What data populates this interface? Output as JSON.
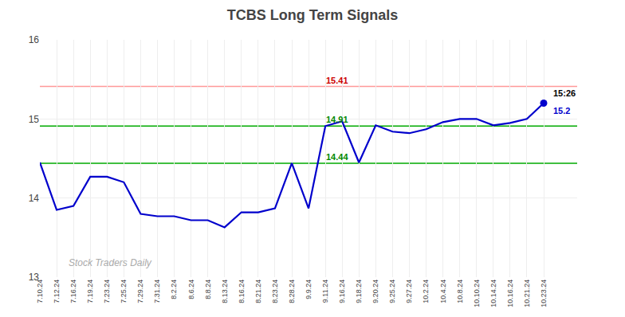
{
  "chart_data": {
    "type": "line",
    "title": "TCBS Long Term Signals",
    "categories": [
      "7.10.24",
      "7.12.24",
      "7.16.24",
      "7.19.24",
      "7.23.24",
      "7.25.24",
      "7.29.24",
      "7.31.24",
      "8.2.24",
      "8.6.24",
      "8.8.24",
      "8.13.24",
      "8.16.24",
      "8.21.24",
      "8.23.24",
      "8.28.24",
      "9.9.24",
      "9.11.24",
      "9.16.24",
      "9.18.24",
      "9.20.24",
      "9.25.24",
      "9.27.24",
      "10.2.24",
      "10.4.24",
      "10.8.24",
      "10.10.24",
      "10.14.24",
      "10.16.24",
      "10.21.24",
      "10.23.24"
    ],
    "values": [
      14.45,
      13.85,
      13.9,
      14.27,
      14.27,
      14.2,
      13.8,
      13.77,
      13.77,
      13.72,
      13.72,
      13.63,
      13.82,
      13.82,
      13.87,
      14.44,
      13.87,
      14.91,
      14.97,
      14.45,
      14.92,
      14.84,
      14.82,
      14.87,
      14.96,
      15.0,
      15.0,
      14.92,
      14.95,
      15.0,
      15.2
    ],
    "color": "#0000cc",
    "ylim": [
      13.0,
      16.0
    ],
    "yticks": [
      13,
      14,
      15,
      16
    ],
    "grid": true,
    "reference_lines": [
      {
        "value": 15.41,
        "label": "15.41",
        "color": "#ff9999",
        "label_color": "#cc0000"
      },
      {
        "value": 14.91,
        "label": "14.91",
        "color": "#00aa00",
        "label_color": "#008800"
      },
      {
        "value": 14.44,
        "label": "14.44",
        "color": "#00aa00",
        "label_color": "#008800"
      }
    ],
    "last_point_labels": [
      "15:26",
      "15.2"
    ],
    "watermark": {
      "text": "Stock Traders Daily",
      "color": "#aaaaaa"
    }
  }
}
